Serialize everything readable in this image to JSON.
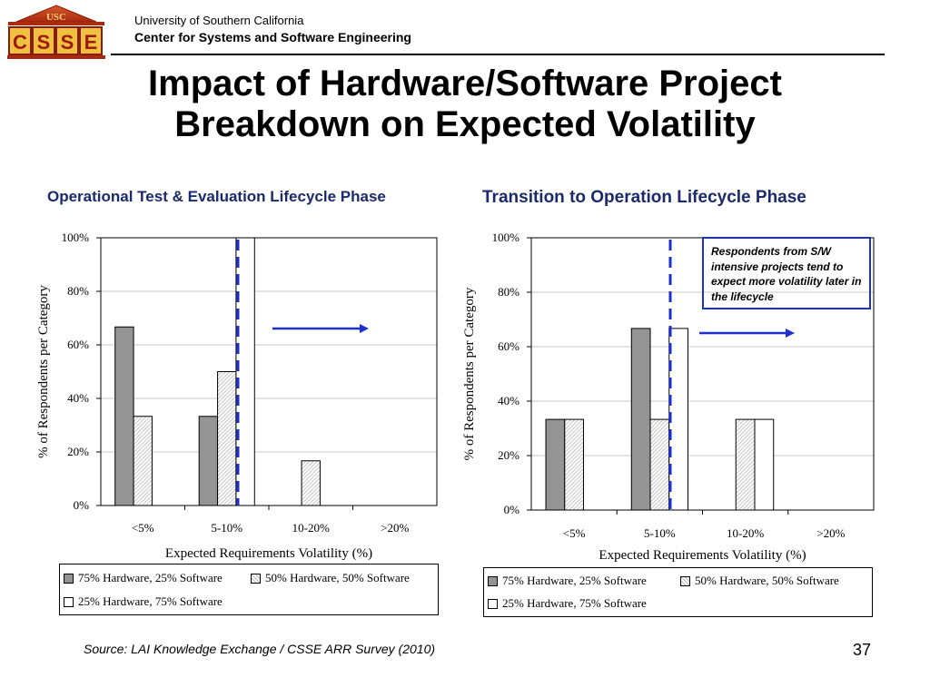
{
  "header": {
    "logo_text": "USC",
    "logo_letters": [
      "C",
      "S",
      "S",
      "E"
    ],
    "university": "University of Southern California",
    "center": "Center for Systems and Software Engineering"
  },
  "slide": {
    "title_line1": "Impact of Hardware/Software Project",
    "title_line2": "Breakdown on Expected Volatility",
    "source": "Source: LAI Knowledge Exchange / CSSE ARR Survey (2010)",
    "page_number": "37"
  },
  "callout": {
    "text": "Respondents from S/W intensive projects tend to expect more volatility later in the lifecycle"
  },
  "colors": {
    "title_blue": "#1a2a6c",
    "dashed_line": "#1c2fd0",
    "arrow": "#1c2fd0",
    "bar_gray": "#949494",
    "bar_white": "#ffffff"
  },
  "chart_data": [
    {
      "type": "bar",
      "title": "Operational Test & Evaluation Lifecycle Phase",
      "xlabel": "Expected Requirements Volatility (%)",
      "ylabel": "% of Respondents per Category",
      "categories": [
        "<5%",
        "5-10%",
        "10-20%",
        ">20%"
      ],
      "ylim": [
        0,
        100
      ],
      "yticks": [
        "0%",
        "20%",
        "40%",
        "60%",
        "80%",
        "100%"
      ],
      "series": [
        {
          "name": "75% Hardware, 25% Software",
          "values": [
            66.7,
            33.3,
            0,
            0
          ]
        },
        {
          "name": "50% Hardware, 50% Software",
          "values": [
            33.3,
            50,
            16.7,
            0
          ]
        },
        {
          "name": "25% Hardware, 75% Software",
          "values": [
            0,
            100,
            0,
            0
          ]
        }
      ],
      "grid": "horizontal",
      "legend": "bottom"
    },
    {
      "type": "bar",
      "title": "Transition to Operation Lifecycle Phase",
      "xlabel": "Expected Requirements Volatility (%)",
      "ylabel": "% of Respondents per Category",
      "categories": [
        "<5%",
        "5-10%",
        "10-20%",
        ">20%"
      ],
      "ylim": [
        0,
        100
      ],
      "yticks": [
        "0%",
        "20%",
        "40%",
        "60%",
        "80%",
        "100%"
      ],
      "series": [
        {
          "name": "75% Hardware, 25% Software",
          "values": [
            33.3,
            66.7,
            0,
            0
          ]
        },
        {
          "name": "50% Hardware, 50% Software",
          "values": [
            33.3,
            33.3,
            33.3,
            0
          ]
        },
        {
          "name": "25% Hardware, 75% Software",
          "values": [
            0,
            66.7,
            33.3,
            0
          ]
        }
      ],
      "grid": "horizontal",
      "legend": "bottom"
    }
  ]
}
